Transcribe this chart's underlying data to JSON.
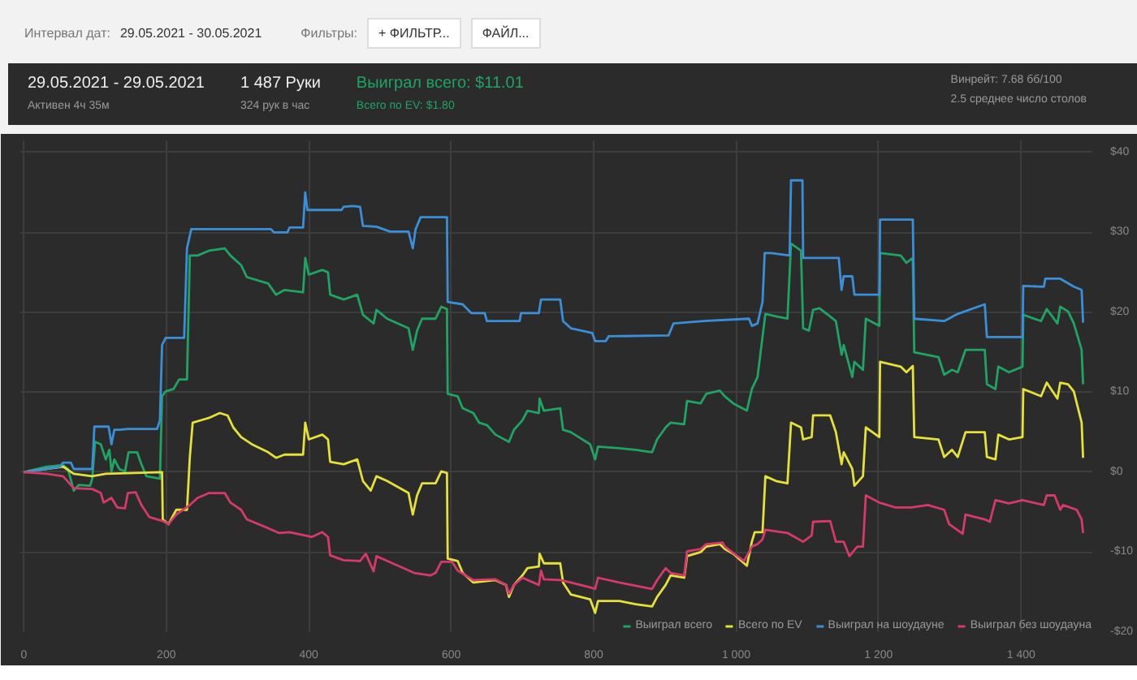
{
  "chart_data": {
    "type": "line",
    "title": "29.05.2021 - 29.05.2021",
    "annotations": [
      "Интервал дат:",
      "29.05.2021 - 30.05.2021",
      "Фильтры:",
      "+ ФИЛЬТР...",
      "ФАЙЛ...",
      "Активен 4ч 35м",
      "1 487 Руки",
      "324 рук в час",
      "Выиграл всего: $11.01",
      "Всего по EV: $1.80",
      "Винрейт: 7.68 бб/100",
      "2.5 среднее число столов"
    ],
    "xlim": [
      -5,
      1500
    ],
    "ylim": [
      -20,
      41.5
    ],
    "xticks": [
      0,
      200,
      400,
      600,
      800,
      {
        "value": 1000,
        "label": "1 000"
      },
      {
        "value": 1200,
        "label": "1 200"
      },
      {
        "value": 1400,
        "label": "1 400"
      }
    ],
    "yticks": [
      {
        "value": -20,
        "label": "-$20"
      },
      {
        "value": -10,
        "label": "-$10"
      },
      {
        "value": 0,
        "label": "$0"
      },
      {
        "value": 10,
        "label": "$10"
      },
      {
        "value": 20,
        "label": "$20"
      },
      {
        "value": 30,
        "label": "$30"
      },
      {
        "value": 40,
        "label": "$40"
      }
    ],
    "grid": true,
    "legend": "bottom right",
    "line_style": "solid",
    "series": [
      {
        "name": "Выиграл всего",
        "color": "#1fa464",
        "x": [
          0,
          32,
          55,
          62,
          70,
          77,
          93,
          96,
          100,
          108,
          115,
          120,
          123,
          127,
          134,
          142,
          147,
          159,
          165,
          172,
          191,
          194,
          199,
          210,
          218,
          229,
          233,
          244,
          260,
          282,
          290,
          305,
          313,
          343,
          354,
          366,
          392,
          395,
          400,
          419,
          427,
          430,
          449,
          468,
          476,
          491,
          495,
          510,
          540,
          546,
          552,
          559,
          578,
          586,
          594,
          595,
          609,
          616,
          631,
          639,
          650,
          662,
          681,
          688,
          700,
          707,
          723,
          724,
          730,
          753,
          757,
          768,
          795,
          802,
          806,
          836,
          859,
          882,
          889,
          901,
          908,
          927,
          931,
          950,
          958,
          977,
          984,
          996,
          1015,
          1022,
          1030,
          1041,
          1056,
          1072,
          1077,
          1091,
          1094,
          1102,
          1108,
          1117,
          1140,
          1148,
          1151,
          1163,
          1166,
          1178,
          1182,
          1201,
          1202,
          1231,
          1239,
          1248,
          1250,
          1284,
          1292,
          1303,
          1311,
          1322,
          1349,
          1352,
          1364,
          1368,
          1383,
          1402,
          1403,
          1428,
          1436,
          1451,
          1455,
          1466,
          1474,
          1485,
          1487
        ],
        "values": [
          0,
          0.7,
          0.9,
          0.4,
          -2.3,
          -1.6,
          -1.7,
          -0.8,
          3.8,
          3.5,
          1.6,
          2.8,
          0.1,
          1.6,
          0.4,
          0.1,
          2.5,
          2.5,
          1.0,
          -0.5,
          -0.8,
          9.5,
          10.1,
          10.4,
          11.6,
          11.6,
          27.1,
          27.1,
          27.7,
          28.0,
          27.1,
          25.9,
          24.4,
          23.6,
          22.2,
          22.8,
          22.5,
          26.8,
          24.7,
          25.3,
          25.0,
          22.2,
          21.6,
          22.2,
          19.7,
          18.6,
          20.3,
          19.2,
          18.0,
          15.3,
          17.7,
          19.2,
          19.2,
          20.7,
          20.4,
          9.8,
          9.5,
          8.0,
          7.4,
          6.2,
          5.9,
          4.7,
          3.8,
          5.3,
          6.5,
          7.7,
          7.4,
          9.2,
          7.7,
          8.0,
          5.3,
          5.0,
          3.5,
          1.6,
          3.2,
          3.0,
          2.8,
          2.5,
          4.1,
          5.6,
          6.2,
          6.0,
          8.9,
          8.6,
          9.8,
          10.2,
          9.5,
          8.6,
          7.7,
          10.4,
          11.9,
          19.8,
          19.5,
          19.2,
          28.6,
          27.7,
          18.0,
          17.7,
          20.3,
          20.5,
          18.9,
          14.7,
          15.9,
          11.9,
          13.8,
          12.8,
          19.2,
          18.3,
          27.4,
          27.1,
          26.2,
          26.8,
          15.0,
          14.4,
          12.2,
          12.8,
          12.5,
          15.3,
          15.3,
          11.0,
          10.4,
          13.2,
          12.5,
          13.2,
          19.7,
          18.9,
          20.4,
          18.6,
          20.7,
          20.1,
          18.6,
          15.3,
          11.0
        ]
      },
      {
        "name": "Всего по EV",
        "color": "#e6e03a",
        "x": [
          0,
          32,
          55,
          70,
          96,
          115,
          194,
          195,
          203,
          214,
          229,
          233,
          237,
          260,
          275,
          286,
          294,
          305,
          320,
          343,
          354,
          366,
          392,
          395,
          400,
          419,
          427,
          430,
          449,
          468,
          476,
          487,
          495,
          510,
          540,
          546,
          552,
          559,
          578,
          586,
          594,
          595,
          609,
          616,
          631,
          662,
          677,
          681,
          688,
          700,
          707,
          723,
          724,
          730,
          753,
          757,
          768,
          795,
          802,
          806,
          836,
          859,
          882,
          889,
          901,
          908,
          927,
          931,
          950,
          958,
          977,
          984,
          996,
          1015,
          1022,
          1026,
          1037,
          1041,
          1056,
          1072,
          1077,
          1091,
          1094,
          1106,
          1108,
          1132,
          1140,
          1148,
          1151,
          1163,
          1166,
          1178,
          1182,
          1201,
          1202,
          1231,
          1239,
          1248,
          1250,
          1284,
          1292,
          1303,
          1311,
          1322,
          1349,
          1352,
          1364,
          1368,
          1383,
          1402,
          1403,
          1428,
          1436,
          1451,
          1455,
          1466,
          1474,
          1485,
          1487
        ],
        "values": [
          0,
          0.4,
          0.7,
          -0.2,
          -0.5,
          -0.2,
          0.0,
          -5.9,
          -6.5,
          -4.7,
          -4.7,
          1.9,
          6.2,
          6.8,
          7.4,
          7.1,
          5.6,
          4.4,
          3.5,
          2.5,
          1.8,
          2.2,
          2.2,
          6.2,
          4.1,
          4.7,
          4.1,
          1.3,
          1.0,
          1.6,
          -1.1,
          -2.3,
          -0.5,
          -1.1,
          -2.6,
          -5.3,
          -2.9,
          -1.4,
          -1.4,
          0.1,
          -0.1,
          -10.8,
          -11.1,
          -12.6,
          -13.8,
          -13.5,
          -14.1,
          -15.6,
          -14.1,
          -12.9,
          -12.0,
          -11.8,
          -10.2,
          -11.4,
          -11.4,
          -13.8,
          -15.3,
          -15.9,
          -17.6,
          -16.1,
          -16.1,
          -16.5,
          -16.8,
          -15.6,
          -14.1,
          -12.9,
          -13.2,
          -10.5,
          -10.0,
          -9.3,
          -9.0,
          -9.6,
          -10.2,
          -11.7,
          -8.7,
          -7.5,
          -7.5,
          -0.5,
          -1.1,
          -1.4,
          6.2,
          5.6,
          4.1,
          4.4,
          7.1,
          7.1,
          5.0,
          1.0,
          2.5,
          0.4,
          -1.7,
          -0.5,
          5.6,
          4.4,
          13.8,
          13.2,
          12.5,
          13.3,
          4.4,
          4.1,
          1.9,
          2.8,
          1.9,
          5.0,
          5.0,
          1.9,
          1.6,
          4.7,
          4.1,
          4.4,
          10.4,
          9.5,
          11.2,
          9.2,
          11.2,
          11.0,
          10.1,
          6.2,
          1.8
        ]
      },
      {
        "name": "Выиграл на шоудауне",
        "color": "#3a8fd8",
        "x": [
          0,
          32,
          51,
          55,
          66,
          70,
          96,
          99,
          119,
          123,
          127,
          134,
          146,
          187,
          191,
          194,
          199,
          225,
          229,
          235,
          347,
          351,
          370,
          373,
          392,
          395,
          398,
          446,
          449,
          461,
          472,
          476,
          495,
          514,
          540,
          546,
          550,
          557,
          594,
          595,
          616,
          628,
          647,
          650,
          696,
          698,
          723,
          726,
          753,
          757,
          768,
          798,
          802,
          817,
          821,
          905,
          912,
          954,
          1018,
          1022,
          1030,
          1037,
          1040,
          1049,
          1075,
          1077,
          1093,
          1094,
          1144,
          1148,
          1151,
          1163,
          1166,
          1201,
          1202,
          1248,
          1250,
          1292,
          1311,
          1349,
          1352,
          1402,
          1403,
          1432,
          1434,
          1455,
          1474,
          1485,
          1487
        ],
        "values": [
          0,
          0.4,
          0.7,
          1.2,
          1.2,
          0.4,
          0.4,
          5.7,
          5.7,
          3.5,
          5.3,
          5.3,
          5.4,
          5.4,
          6.5,
          15.9,
          16.8,
          16.8,
          28.0,
          30.4,
          30.4,
          30.0,
          30.0,
          30.6,
          30.6,
          35.0,
          32.8,
          32.8,
          33.2,
          33.3,
          33.2,
          30.8,
          30.7,
          30.1,
          30.1,
          28.0,
          30.4,
          31.9,
          31.9,
          21.3,
          21.0,
          19.9,
          19.9,
          18.9,
          18.9,
          19.9,
          19.9,
          21.6,
          21.6,
          18.9,
          18.0,
          17.4,
          16.4,
          16.4,
          17.0,
          17.1,
          18.6,
          18.9,
          19.2,
          18.3,
          18.6,
          21.3,
          27.4,
          27.4,
          27.1,
          36.5,
          36.5,
          26.8,
          26.8,
          22.8,
          24.5,
          24.5,
          22.2,
          22.2,
          31.6,
          31.6,
          19.2,
          18.9,
          19.8,
          21.0,
          16.9,
          16.9,
          23.3,
          23.2,
          24.2,
          24.2,
          23.2,
          22.8,
          18.7
        ]
      },
      {
        "name": "Выиграл без шоудауна",
        "color": "#d63a6a",
        "x": [
          0,
          32,
          55,
          70,
          96,
          108,
          112,
          123,
          131,
          142,
          146,
          157,
          165,
          176,
          195,
          203,
          214,
          233,
          244,
          260,
          282,
          290,
          305,
          313,
          343,
          358,
          373,
          404,
          419,
          427,
          430,
          449,
          472,
          480,
          491,
          495,
          510,
          548,
          571,
          578,
          586,
          601,
          609,
          631,
          662,
          677,
          681,
          688,
          700,
          723,
          726,
          730,
          753,
          768,
          795,
          802,
          806,
          836,
          859,
          882,
          889,
          901,
          908,
          927,
          931,
          950,
          958,
          981,
          984,
          1011,
          1022,
          1030,
          1037,
          1041,
          1072,
          1094,
          1106,
          1108,
          1132,
          1140,
          1151,
          1159,
          1170,
          1178,
          1182,
          1201,
          1223,
          1246,
          1269,
          1292,
          1299,
          1318,
          1322,
          1349,
          1356,
          1364,
          1383,
          1402,
          1432,
          1436,
          1447,
          1455,
          1459,
          1478,
          1485,
          1487
        ],
        "values": [
          0,
          -0.2,
          -0.5,
          -2.0,
          -2.1,
          -2.6,
          -3.8,
          -3.2,
          -4.4,
          -4.5,
          -2.6,
          -2.5,
          -4.1,
          -5.6,
          -6.1,
          -6.5,
          -5.3,
          -4.1,
          -3.2,
          -2.6,
          -2.6,
          -3.8,
          -4.7,
          -5.9,
          -7.0,
          -7.6,
          -7.5,
          -8.1,
          -7.5,
          -8.1,
          -10.4,
          -11.0,
          -11.1,
          -10.2,
          -12.4,
          -10.5,
          -11.1,
          -12.6,
          -12.9,
          -12.6,
          -11.2,
          -11.2,
          -12.3,
          -13.5,
          -13.4,
          -14.1,
          -15.2,
          -14.1,
          -13.2,
          -14.1,
          -12.3,
          -13.4,
          -13.5,
          -13.8,
          -14.4,
          -14.6,
          -13.2,
          -13.8,
          -14.2,
          -14.6,
          -13.5,
          -12.0,
          -12.6,
          -12.9,
          -9.9,
          -9.6,
          -9.0,
          -8.8,
          -9.3,
          -11.1,
          -9.3,
          -9.0,
          -8.4,
          -7.2,
          -7.6,
          -8.7,
          -7.9,
          -6.2,
          -6.1,
          -8.7,
          -8.7,
          -10.5,
          -9.3,
          -9.3,
          -2.9,
          -3.8,
          -4.4,
          -4.4,
          -4.1,
          -4.7,
          -6.5,
          -7.7,
          -5.3,
          -5.9,
          -6.2,
          -3.5,
          -3.9,
          -3.5,
          -4.1,
          -2.9,
          -2.9,
          -4.7,
          -4.1,
          -4.7,
          -5.9,
          -7.6
        ]
      }
    ]
  }
}
